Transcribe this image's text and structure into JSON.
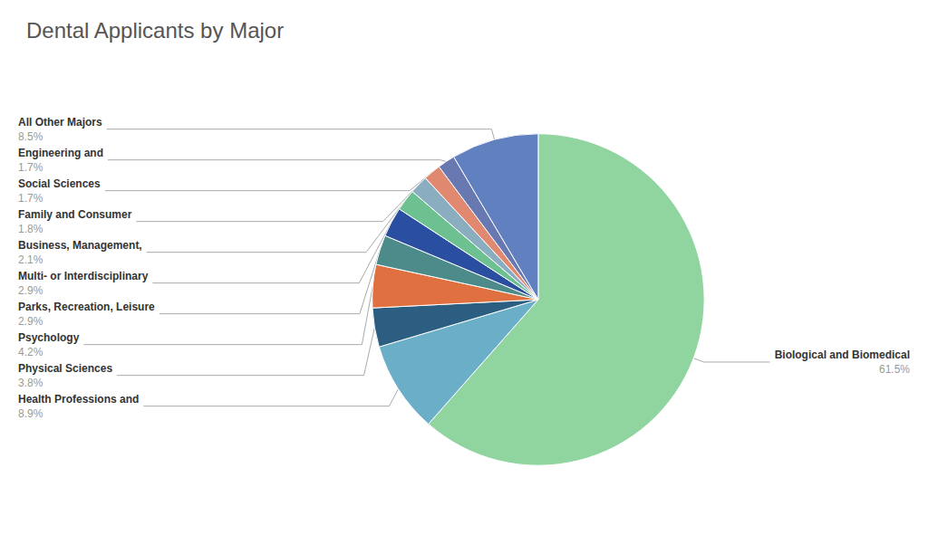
{
  "chart_data": {
    "type": "pie",
    "title": "Dental Applicants by Major",
    "categories": [
      "Biological and Biomedical",
      "Health Professions and",
      "Physical Sciences",
      "Psychology",
      "Parks, Recreation, Leisure",
      "Multi- or Interdisciplinary",
      "Business, Management,",
      "Family and Consumer",
      "Social Sciences",
      "Engineering and",
      "All Other Majors"
    ],
    "values": [
      61.5,
      8.9,
      3.8,
      4.2,
      2.9,
      2.9,
      2.1,
      1.8,
      1.7,
      1.7,
      8.5
    ],
    "value_labels": [
      "61.5%",
      "8.9%",
      "3.8%",
      "4.2%",
      "2.9%",
      "2.9%",
      "2.1%",
      "1.8%",
      "1.7%",
      "1.7%",
      "8.5%"
    ],
    "colors": [
      "#90D5A0",
      "#6AAEC8",
      "#2B5E80",
      "#E07040",
      "#4D8A8A",
      "#2B4FA0",
      "#6DC090",
      "#8AADC0",
      "#E08870",
      "#6878B0",
      "#6080C0"
    ],
    "data_labels": true
  }
}
